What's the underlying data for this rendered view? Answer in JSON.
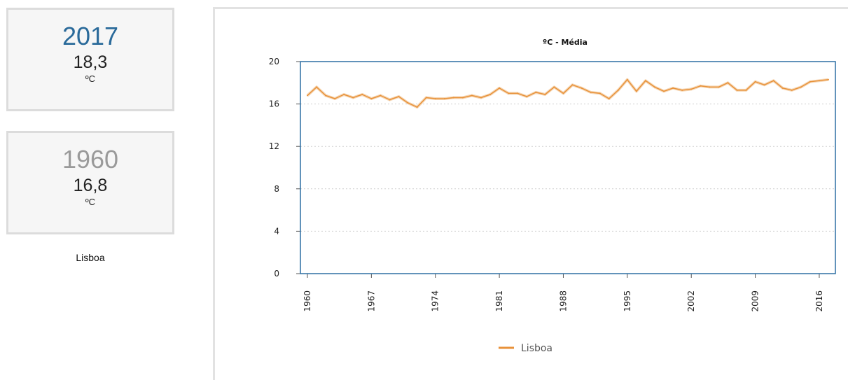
{
  "stats": {
    "latest": {
      "year": "2017",
      "value": "18,3",
      "unit": "ºC"
    },
    "earliest": {
      "year": "1960",
      "value": "16,8",
      "unit": "ºC"
    },
    "location": "Lisboa"
  },
  "colors": {
    "latest_year": "#2a6a9a",
    "earliest_year": "#9a9a9a",
    "line": "#e8923a",
    "plot_border": "#2d6fa3",
    "grid": "#cfcfcf"
  },
  "chart_data": {
    "type": "line",
    "title": "ºC - Média",
    "xlabel": "",
    "ylabel": "",
    "ylim": [
      0,
      20
    ],
    "yticks": [
      "0",
      "4",
      "8",
      "12",
      "16",
      "20"
    ],
    "xticks": [
      "1960",
      "1967",
      "1974",
      "1981",
      "1988",
      "1995",
      "2002",
      "2009",
      "2016"
    ],
    "grid": true,
    "legend": "bottom-center",
    "x": [
      1960,
      1961,
      1962,
      1963,
      1964,
      1965,
      1966,
      1967,
      1968,
      1969,
      1970,
      1971,
      1972,
      1973,
      1974,
      1975,
      1976,
      1977,
      1978,
      1979,
      1980,
      1981,
      1982,
      1983,
      1984,
      1985,
      1986,
      1987,
      1988,
      1989,
      1990,
      1991,
      1992,
      1993,
      1994,
      1995,
      1996,
      1997,
      1998,
      1999,
      2000,
      2001,
      2002,
      2003,
      2004,
      2005,
      2006,
      2007,
      2008,
      2009,
      2010,
      2011,
      2012,
      2013,
      2014,
      2015,
      2016,
      2017
    ],
    "series": [
      {
        "name": "Lisboa",
        "values": [
          16.8,
          17.6,
          16.8,
          16.5,
          16.9,
          16.6,
          16.9,
          16.5,
          16.8,
          16.4,
          16.7,
          16.1,
          15.7,
          16.6,
          16.5,
          16.5,
          16.6,
          16.6,
          16.8,
          16.6,
          16.9,
          17.5,
          17.0,
          17.0,
          16.7,
          17.1,
          16.9,
          17.6,
          17.0,
          17.8,
          17.5,
          17.1,
          17.0,
          16.5,
          17.3,
          18.3,
          17.2,
          18.2,
          17.6,
          17.2,
          17.5,
          17.3,
          17.4,
          17.7,
          17.6,
          17.6,
          18.0,
          17.3,
          17.3,
          18.1,
          17.8,
          18.2,
          17.5,
          17.3,
          17.6,
          18.1,
          18.2,
          18.3
        ]
      }
    ]
  }
}
